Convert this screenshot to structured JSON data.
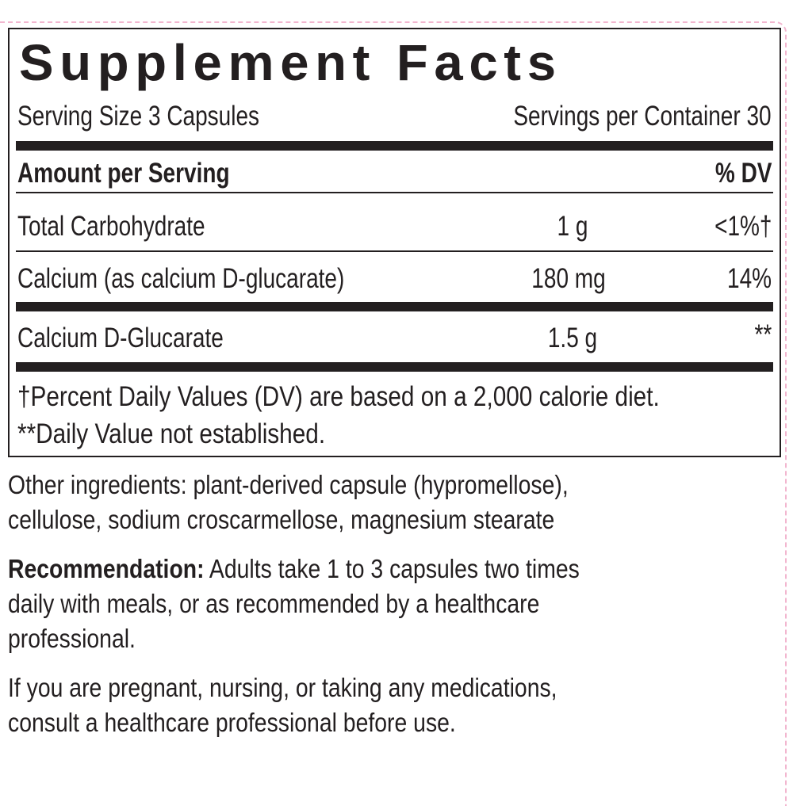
{
  "title": "Supplement Facts",
  "serving_size": "Serving Size 3 Capsules",
  "servings_per_container": "Servings per Container 30",
  "header": {
    "amount": "Amount per Serving",
    "dv": "% DV"
  },
  "rows": [
    {
      "name": "Total Carbohydrate",
      "amount": "1 g",
      "dv": "<1%†"
    },
    {
      "name": "Calcium (as calcium D-glucarate)",
      "amount": "180 mg",
      "dv": "14%"
    },
    {
      "name": "Calcium D-Glucarate",
      "amount": "1.5 g",
      "dv": "**"
    }
  ],
  "footnotes": [
    "†Percent Daily Values (DV) are based on a 2,000 calorie diet.",
    "**Daily Value not established."
  ],
  "other_ingredients": [
    "Other ingredients: plant-derived capsule (hypromellose),",
    "cellulose, sodium croscarmellose, magnesium stearate"
  ],
  "recommendation": {
    "label": "Recommendation:",
    "lines": [
      " Adults take 1 to 3 capsules two times",
      "daily with meals, or as recommended by a healthcare",
      "professional."
    ]
  },
  "warning": [
    "If you are pregnant, nursing, or taking any medications,",
    "consult a healthcare professional before use."
  ]
}
